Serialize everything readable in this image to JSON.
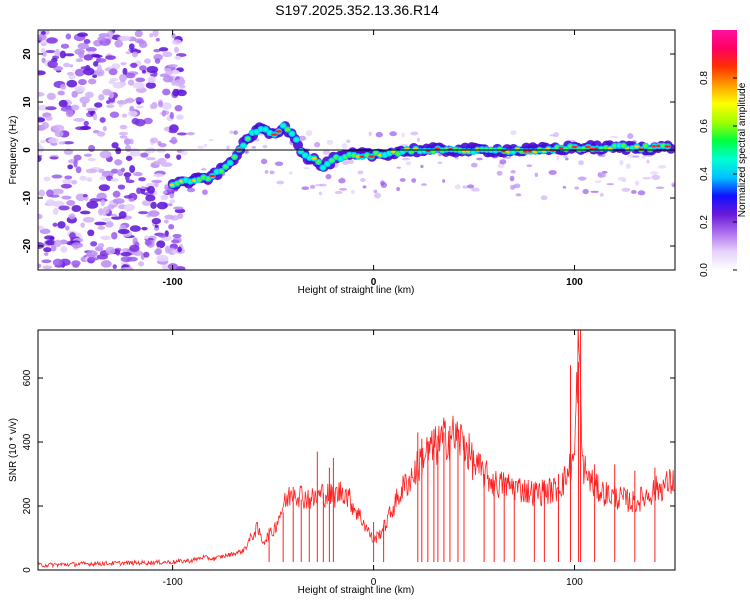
{
  "figure_title": "S197.2025.352.13.36.R14",
  "chart_data": [
    {
      "type": "heatmap",
      "title": "S197.2025.352.13.36.R14",
      "xlabel": "Height of straight line (km)",
      "ylabel": "Frequency (Hz)",
      "xlim": [
        -167,
        150
      ],
      "ylim": [
        -25,
        25
      ],
      "xticks": [
        -100,
        0,
        100
      ],
      "xtick_labels": [
        "-100",
        "0",
        "100"
      ],
      "yticks": [
        -20,
        -10,
        0,
        10,
        20
      ],
      "ytick_labels": [
        "-20",
        "-10",
        "0",
        "10",
        "20"
      ],
      "colorbar": {
        "label": "Normalized spectral amplitude",
        "range": [
          0,
          1
        ],
        "ticks": [
          0.0,
          0.2,
          0.4,
          0.6,
          0.8
        ],
        "tick_labels": [
          "0.0",
          "0.2",
          "0.4",
          "0.6",
          "0.8"
        ],
        "colors": [
          "#ffffff",
          "#e6d2fa",
          "#b070f0",
          "#6a1ad8",
          "#1010ff",
          "#00c0ff",
          "#00ffd0",
          "#00ff40",
          "#a0ff00",
          "#ffff00",
          "#ffa000",
          "#ff3000",
          "#ff0060",
          "#ff10a0"
        ]
      },
      "ridge": {
        "description": "frequency of strongest signal vs height",
        "x": [
          -100,
          -90,
          -80,
          -72,
          -65,
          -60,
          -55,
          -50,
          -45,
          -40,
          -35,
          -30,
          -25,
          -20,
          -15,
          -10,
          0,
          10,
          20,
          30,
          40,
          60,
          80,
          100,
          120,
          140,
          148
        ],
        "y": [
          -7,
          -6.5,
          -5.5,
          -3,
          1,
          3.5,
          4.5,
          3,
          5,
          3.5,
          -1,
          -2,
          -3.5,
          -2,
          -1.5,
          -1,
          -1,
          -0.5,
          0,
          0,
          0,
          0,
          0,
          0.5,
          0.5,
          0.5,
          0.5
        ]
      }
    },
    {
      "type": "line",
      "xlabel": "Height of straight line (km)",
      "ylabel": "SNR (10 * v/v)",
      "xlim": [
        -167,
        150
      ],
      "ylim": [
        0,
        750
      ],
      "xticks": [
        -100,
        0,
        100
      ],
      "xtick_labels": [
        "-100",
        "0",
        "100"
      ],
      "yticks": [
        0,
        200,
        400,
        600
      ],
      "ytick_labels": [
        "0",
        "200",
        "400",
        "600"
      ],
      "color": "#ff2020",
      "series": [
        {
          "name": "SNR",
          "x": [
            -167,
            -150,
            -140,
            -120,
            -100,
            -90,
            -85,
            -80,
            -70,
            -65,
            -60,
            -58,
            -55,
            -50,
            -45,
            -40,
            -35,
            -30,
            -25,
            -20,
            -15,
            -10,
            -5,
            0,
            5,
            10,
            15,
            20,
            25,
            30,
            35,
            40,
            45,
            50,
            55,
            60,
            70,
            80,
            90,
            95,
            100,
            102,
            104,
            106,
            110,
            115,
            120,
            125,
            130,
            140,
            150
          ],
          "y": [
            15,
            18,
            20,
            22,
            25,
            30,
            40,
            35,
            50,
            60,
            110,
            130,
            90,
            120,
            200,
            250,
            230,
            220,
            240,
            230,
            250,
            200,
            150,
            90,
            130,
            200,
            260,
            300,
            360,
            380,
            410,
            420,
            400,
            330,
            300,
            270,
            260,
            240,
            250,
            280,
            350,
            720,
            330,
            300,
            260,
            240,
            230,
            220,
            210,
            250,
            280
          ]
        }
      ],
      "spikes": {
        "x": [
          -52,
          -45,
          -40,
          -36,
          -32,
          -28,
          -25,
          -22,
          -20,
          0,
          5,
          22,
          24,
          27,
          30,
          32,
          35,
          38,
          42,
          45,
          55,
          60,
          65,
          70,
          80,
          85,
          92,
          98,
          102,
          103,
          110,
          120,
          130,
          140
        ],
        "y": [
          130,
          180,
          260,
          220,
          200,
          370,
          240,
          320,
          350,
          150,
          140,
          430,
          410,
          400,
          440,
          420,
          430,
          450,
          440,
          420,
          300,
          280,
          260,
          240,
          250,
          280,
          300,
          640,
          650,
          755,
          330,
          330,
          310,
          320
        ]
      }
    }
  ]
}
